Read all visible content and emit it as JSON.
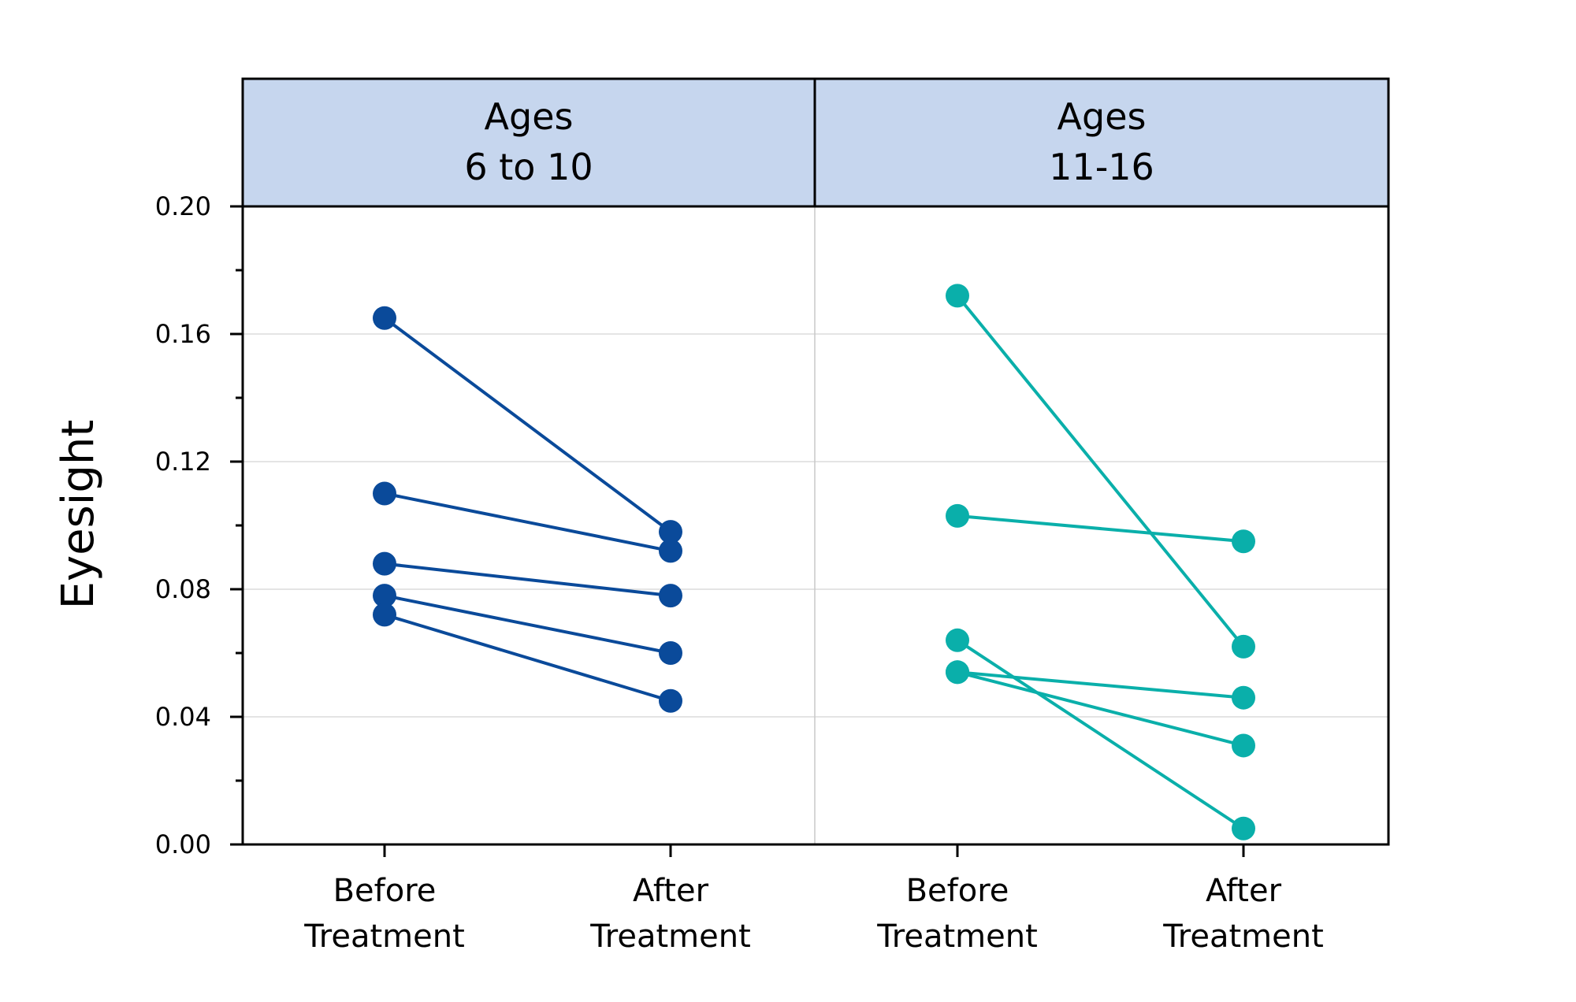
{
  "chart_data": {
    "type": "line",
    "ylabel": "Eyesight",
    "ylim": [
      0,
      0.2
    ],
    "yticks": [
      "0.00",
      "0.04",
      "0.08",
      "0.12",
      "0.16",
      "0.20"
    ],
    "categories": [
      [
        "Before",
        "Treatment"
      ],
      [
        "After",
        "Treatment"
      ]
    ],
    "grid": true,
    "panels": [
      {
        "label": [
          "Ages",
          "6 to 10"
        ],
        "color": "#0a4a9a",
        "pairs": [
          [
            0.165,
            0.098
          ],
          [
            0.11,
            0.092
          ],
          [
            0.088,
            0.078
          ],
          [
            0.078,
            0.06
          ],
          [
            0.072,
            0.045
          ]
        ]
      },
      {
        "label": [
          "Ages",
          "11-16"
        ],
        "color": "#0aafaa",
        "pairs": [
          [
            0.172,
            0.062
          ],
          [
            0.103,
            0.095
          ],
          [
            0.064,
            0.005
          ],
          [
            0.054,
            0.046
          ],
          [
            0.054,
            0.031
          ]
        ]
      }
    ]
  }
}
